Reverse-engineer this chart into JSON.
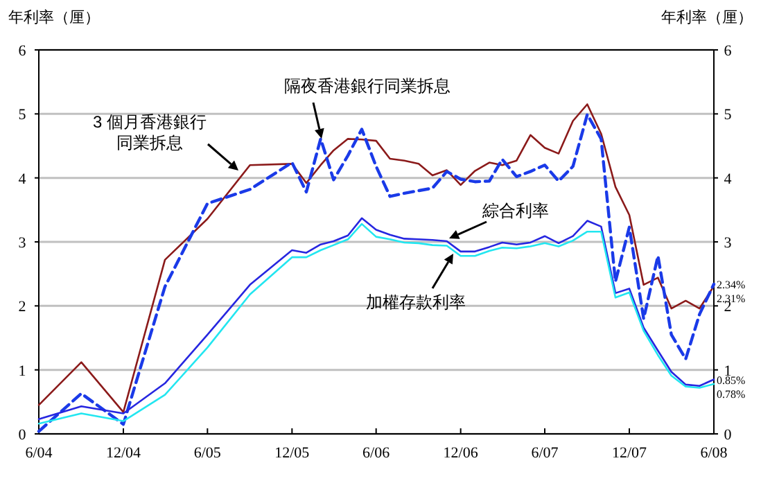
{
  "chart_data": {
    "type": "line",
    "ylabel": "年利率（厘）",
    "y2label": "年利率（厘）",
    "x": [
      "2004-06",
      "2004-09",
      "2004-12",
      "2005-03",
      "2005-06",
      "2005-09",
      "2005-12",
      "2006-01",
      "2006-02",
      "2006-03",
      "2006-04",
      "2006-05",
      "2006-06",
      "2006-07",
      "2006-08",
      "2006-09",
      "2006-10",
      "2006-11",
      "2006-12",
      "2007-01",
      "2007-02",
      "2007-03",
      "2007-04",
      "2007-05",
      "2007-06",
      "2007-07",
      "2007-08",
      "2007-09",
      "2007-10",
      "2007-11",
      "2007-12",
      "2008-01",
      "2008-02",
      "2008-03",
      "2008-04",
      "2008-05",
      "2008-06"
    ],
    "series": [
      {
        "name": "3 個月香港銀行同業拆息",
        "color": "#8b1a1a",
        "values": [
          0.45,
          1.12,
          0.34,
          2.72,
          3.36,
          4.2,
          4.22,
          3.92,
          4.2,
          4.43,
          4.61,
          4.6,
          4.58,
          4.3,
          4.27,
          4.22,
          4.04,
          4.12,
          3.89,
          4.11,
          4.24,
          4.2,
          4.27,
          4.67,
          4.47,
          4.38,
          4.89,
          5.15,
          4.69,
          3.86,
          3.42,
          2.33,
          2.44,
          1.96,
          2.08,
          1.96,
          2.31
        ],
        "value_labels": [
          null,
          null,
          null,
          null,
          null,
          null,
          null,
          null,
          null,
          null,
          null,
          null,
          null,
          null,
          null,
          null,
          null,
          null,
          null,
          null,
          null,
          null,
          null,
          null,
          null,
          null,
          null,
          null,
          null,
          null,
          null,
          null,
          null,
          null,
          null,
          null,
          "2.31%"
        ]
      },
      {
        "name": "隔夜香港銀行同業拆息",
        "color": "#1a3ae8",
        "line_style": "dashed",
        "values": [
          0.04,
          0.63,
          0.15,
          2.3,
          3.6,
          3.82,
          4.24,
          3.78,
          4.61,
          3.97,
          4.35,
          4.76,
          4.18,
          3.71,
          3.76,
          3.8,
          3.84,
          4.1,
          3.98,
          3.94,
          3.95,
          4.29,
          4.02,
          4.1,
          4.2,
          3.95,
          4.18,
          4.99,
          4.61,
          2.38,
          3.23,
          1.8,
          2.78,
          1.55,
          1.17,
          1.87,
          2.34
        ],
        "value_labels": [
          null,
          null,
          null,
          null,
          null,
          null,
          null,
          null,
          null,
          null,
          null,
          null,
          null,
          null,
          null,
          null,
          null,
          null,
          null,
          null,
          null,
          null,
          null,
          null,
          null,
          null,
          null,
          null,
          null,
          null,
          null,
          null,
          null,
          null,
          null,
          null,
          "2.34%"
        ]
      },
      {
        "name": "綜合利率",
        "color": "#2626e0",
        "values": [
          0.23,
          0.43,
          0.32,
          0.79,
          1.55,
          2.33,
          2.87,
          2.83,
          2.96,
          3.01,
          3.1,
          3.37,
          3.19,
          3.11,
          3.05,
          3.04,
          3.03,
          3.01,
          2.85,
          2.85,
          2.92,
          2.99,
          2.96,
          2.99,
          3.09,
          2.98,
          3.09,
          3.33,
          3.24,
          2.2,
          2.27,
          1.66,
          1.3,
          0.97,
          0.77,
          0.75,
          0.85
        ],
        "value_labels": [
          null,
          null,
          null,
          null,
          null,
          null,
          null,
          null,
          null,
          null,
          null,
          null,
          null,
          null,
          null,
          null,
          null,
          null,
          null,
          null,
          null,
          null,
          null,
          null,
          null,
          null,
          null,
          null,
          null,
          null,
          null,
          null,
          null,
          null,
          null,
          null,
          "0.85%"
        ]
      },
      {
        "name": "加權存款利率",
        "color": "#22e6f0",
        "values": [
          0.16,
          0.32,
          0.2,
          0.61,
          1.35,
          2.18,
          2.76,
          2.76,
          2.87,
          2.95,
          3.04,
          3.28,
          3.08,
          3.04,
          2.99,
          2.98,
          2.95,
          2.94,
          2.78,
          2.78,
          2.86,
          2.91,
          2.9,
          2.93,
          2.98,
          2.93,
          3.02,
          3.16,
          3.16,
          2.13,
          2.21,
          1.61,
          1.23,
          0.91,
          0.74,
          0.72,
          0.78
        ],
        "value_labels": [
          null,
          null,
          null,
          null,
          null,
          null,
          null,
          null,
          null,
          null,
          null,
          null,
          null,
          null,
          null,
          null,
          null,
          null,
          null,
          null,
          null,
          null,
          null,
          null,
          null,
          null,
          null,
          null,
          null,
          null,
          null,
          null,
          null,
          null,
          null,
          null,
          "0.78%"
        ]
      }
    ],
    "xlim": [
      "2004-06",
      "2008-06"
    ],
    "xticks": [
      {
        "value": "2004-06",
        "label": "6/04"
      },
      {
        "value": "2004-12",
        "label": "12/04"
      },
      {
        "value": "2005-06",
        "label": "6/05"
      },
      {
        "value": "2005-12",
        "label": "12/05"
      },
      {
        "value": "2006-06",
        "label": "6/06"
      },
      {
        "value": "2006-12",
        "label": "12/06"
      },
      {
        "value": "2007-06",
        "label": "6/07"
      },
      {
        "value": "2007-12",
        "label": "12/07"
      },
      {
        "value": "2008-06",
        "label": "6/08"
      }
    ],
    "ylim": [
      0,
      6
    ],
    "yticks": [
      0,
      1,
      2,
      3,
      4,
      5,
      6
    ],
    "y2lim": [
      0,
      6
    ],
    "y2ticks": [
      0,
      1,
      2,
      3,
      4,
      5,
      6
    ],
    "grid": "y",
    "marker": "none",
    "line_style": "solid"
  }
}
